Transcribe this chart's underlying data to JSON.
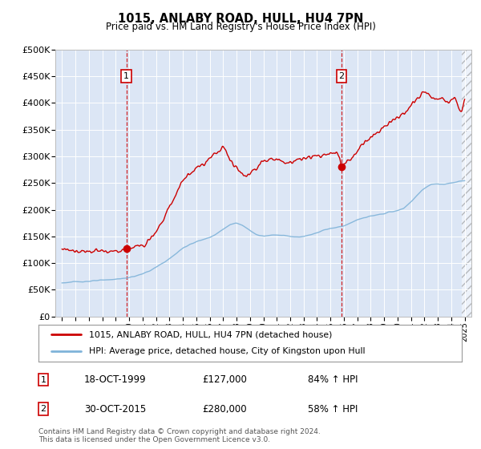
{
  "title": "1015, ANLABY ROAD, HULL, HU4 7PN",
  "subtitle": "Price paid vs. HM Land Registry's House Price Index (HPI)",
  "ylim": [
    0,
    500000
  ],
  "yticks": [
    0,
    50000,
    100000,
    150000,
    200000,
    250000,
    300000,
    350000,
    400000,
    450000,
    500000
  ],
  "ytick_labels": [
    "£0",
    "£50K",
    "£100K",
    "£150K",
    "£200K",
    "£250K",
    "£300K",
    "£350K",
    "£400K",
    "£450K",
    "£500K"
  ],
  "plot_bg_color": "#dce6f5",
  "line1_color": "#cc0000",
  "line2_color": "#7fb3d9",
  "sale1_x": 1999.79,
  "sale1_y": 127000,
  "sale2_x": 2015.83,
  "sale2_y": 280000,
  "legend_line1": "1015, ANLABY ROAD, HULL, HU4 7PN (detached house)",
  "legend_line2": "HPI: Average price, detached house, City of Kingston upon Hull",
  "table_row1": [
    "1",
    "18-OCT-1999",
    "£127,000",
    "84% ↑ HPI"
  ],
  "table_row2": [
    "2",
    "30-OCT-2015",
    "£280,000",
    "58% ↑ HPI"
  ],
  "footer": "Contains HM Land Registry data © Crown copyright and database right 2024.\nThis data is licensed under the Open Government Licence v3.0.",
  "vline1_x": 1999.79,
  "vline2_x": 2015.83,
  "xmin": 1994.5,
  "xmax": 2025.5,
  "hpi_years": [
    1995,
    1995.5,
    1996,
    1996.5,
    1997,
    1997.5,
    1998,
    1998.5,
    1999,
    1999.5,
    2000,
    2000.5,
    2001,
    2001.5,
    2002,
    2002.5,
    2003,
    2003.5,
    2004,
    2004.5,
    2005,
    2005.5,
    2006,
    2006.5,
    2007,
    2007.5,
    2008,
    2008.5,
    2009,
    2009.5,
    2010,
    2010.5,
    2011,
    2011.5,
    2012,
    2012.5,
    2013,
    2013.5,
    2014,
    2014.5,
    2015,
    2015.5,
    2016,
    2016.5,
    2017,
    2017.5,
    2018,
    2018.5,
    2019,
    2019.5,
    2020,
    2020.5,
    2021,
    2021.5,
    2022,
    2022.5,
    2023,
    2023.5,
    2024,
    2024.5,
    2025
  ],
  "hpi_vals": [
    63000,
    64000,
    65000,
    65500,
    66000,
    67000,
    68000,
    69000,
    70000,
    71000,
    73000,
    76000,
    80000,
    85000,
    92000,
    100000,
    108000,
    118000,
    128000,
    135000,
    140000,
    144000,
    148000,
    155000,
    163000,
    172000,
    175000,
    170000,
    162000,
    153000,
    150000,
    152000,
    153000,
    152000,
    150000,
    149000,
    150000,
    153000,
    157000,
    162000,
    165000,
    167000,
    170000,
    175000,
    181000,
    185000,
    188000,
    190000,
    193000,
    196000,
    198000,
    203000,
    215000,
    228000,
    240000,
    248000,
    248000,
    247000,
    250000,
    252000,
    255000
  ],
  "red_years": [
    1995,
    1995.5,
    1996,
    1996.5,
    1997,
    1997.5,
    1998,
    1998.5,
    1999,
    1999.3,
    1999.79,
    2000,
    2000.5,
    2001,
    2001.5,
    2002,
    2002.5,
    2003,
    2003.5,
    2004,
    2004.5,
    2005,
    2005.5,
    2006,
    2006.2,
    2006.5,
    2006.8,
    2007,
    2007.2,
    2007.5,
    2007.8,
    2008,
    2008.2,
    2008.5,
    2008.8,
    2009,
    2009.2,
    2009.5,
    2009.8,
    2010,
    2010.5,
    2011,
    2011.5,
    2012,
    2012.3,
    2012.5,
    2012.8,
    2013,
    2013.5,
    2014,
    2014.5,
    2015,
    2015.5,
    2015.83,
    2016,
    2016.5,
    2017,
    2017.5,
    2018,
    2018.5,
    2019,
    2019.5,
    2020,
    2020.5,
    2021,
    2021.5,
    2022,
    2022.3,
    2022.5,
    2022.8,
    2023,
    2023.3,
    2023.5,
    2023.8,
    2024,
    2024.3,
    2024.5,
    2024.8,
    2025
  ],
  "red_vals": [
    125000,
    124000,
    123000,
    122500,
    122000,
    122500,
    122000,
    121500,
    121000,
    122000,
    127000,
    128000,
    130000,
    135000,
    145000,
    160000,
    180000,
    205000,
    230000,
    255000,
    268000,
    278000,
    285000,
    295000,
    300000,
    308000,
    312000,
    318000,
    310000,
    295000,
    285000,
    280000,
    272000,
    268000,
    262000,
    268000,
    272000,
    278000,
    290000,
    292000,
    295000,
    293000,
    290000,
    288000,
    290000,
    292000,
    295000,
    296000,
    298000,
    300000,
    302000,
    305000,
    308000,
    280000,
    285000,
    295000,
    310000,
    325000,
    335000,
    345000,
    355000,
    365000,
    372000,
    380000,
    395000,
    410000,
    420000,
    415000,
    410000,
    405000,
    408000,
    412000,
    405000,
    400000,
    405000,
    410000,
    395000,
    380000,
    410000
  ]
}
